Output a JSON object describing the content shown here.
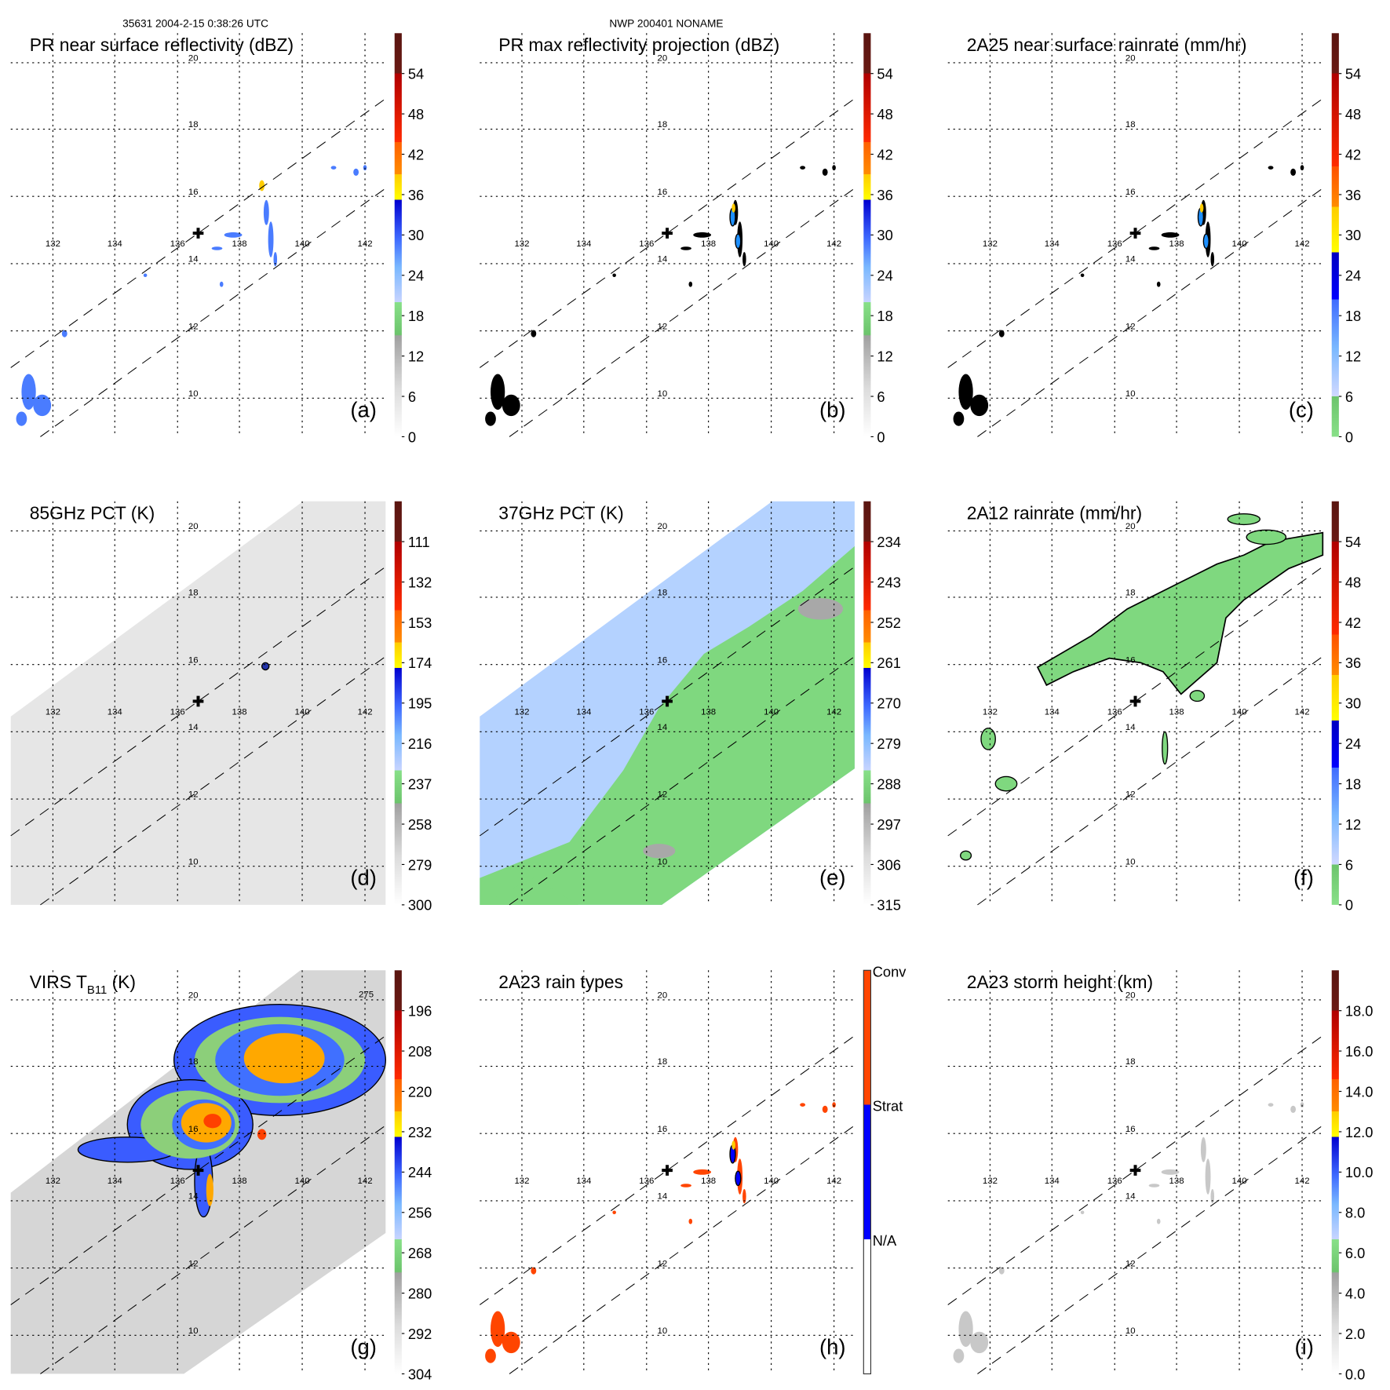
{
  "header": {
    "left": "35631 2004-2-15 0:38:26 UTC",
    "center": "NWP 200401 NONAME"
  },
  "axes": {
    "lat_labels": [
      "20",
      "18",
      "16",
      "14",
      "12",
      "10"
    ],
    "lon_labels": [
      "132",
      "134",
      "136",
      "138",
      "140",
      "142"
    ]
  },
  "chart_data": [
    {
      "type": "heatmap",
      "id": "a",
      "title": "PR near surface reflectivity (dBZ)",
      "panel_label": "(a)",
      "scale": "A",
      "ticks": [
        "0",
        "6",
        "12",
        "18",
        "24",
        "30",
        "36",
        "42",
        "48",
        "54"
      ],
      "range": [
        0,
        60
      ]
    },
    {
      "type": "heatmap",
      "id": "b",
      "title": "PR max reflectivity projection (dBZ)",
      "panel_label": "(b)",
      "scale": "A",
      "ticks": [
        "0",
        "6",
        "12",
        "18",
        "24",
        "30",
        "36",
        "42",
        "48",
        "54"
      ],
      "range": [
        0,
        60
      ]
    },
    {
      "type": "heatmap",
      "id": "c",
      "title": "2A25 near surface rainrate (mm/hr)",
      "panel_label": "(c)",
      "scale": "C",
      "ticks": [
        "0",
        "6",
        "12",
        "18",
        "24",
        "30",
        "36",
        "42",
        "48",
        "54"
      ],
      "range": [
        0,
        60
      ]
    },
    {
      "type": "heatmap",
      "id": "d",
      "title": "85GHz PCT (K)",
      "panel_label": "(d)",
      "scale": "A",
      "ticks": [
        "300",
        "279",
        "258",
        "237",
        "216",
        "195",
        "174",
        "153",
        "132",
        "111"
      ],
      "range": [
        300,
        90
      ]
    },
    {
      "type": "heatmap",
      "id": "e",
      "title": "37GHz PCT (K)",
      "panel_label": "(e)",
      "scale": "A",
      "ticks": [
        "315",
        "306",
        "297",
        "288",
        "279",
        "270",
        "261",
        "252",
        "243",
        "234"
      ],
      "range": [
        315,
        225
      ]
    },
    {
      "type": "heatmap",
      "id": "f",
      "title": "2A12 rainrate (mm/hr)",
      "panel_label": "(f)",
      "scale": "C",
      "ticks": [
        "0",
        "6",
        "12",
        "18",
        "24",
        "30",
        "36",
        "42",
        "48",
        "54"
      ],
      "range": [
        0,
        60
      ]
    },
    {
      "type": "heatmap",
      "id": "g",
      "title": "VIRS T",
      "title_sub": "B11",
      "title_end": " (K)",
      "panel_label": "(g)",
      "scale": "A",
      "ticks": [
        "304",
        "292",
        "280",
        "268",
        "256",
        "244",
        "232",
        "220",
        "208",
        "196"
      ],
      "range": [
        304,
        184
      ],
      "contour_label": "275"
    },
    {
      "type": "heatmap",
      "id": "h",
      "title": "2A23 rain types",
      "panel_label": "(h)",
      "scale": "H",
      "categories": [
        "N/A",
        "Strat",
        "Conv"
      ]
    },
    {
      "type": "heatmap",
      "id": "i",
      "title": "2A23 storm height (km)",
      "panel_label": "(i)",
      "scale": "A",
      "ticks": [
        "0.0",
        "2.0",
        "4.0",
        "6.0",
        "8.0",
        "10.0",
        "12.0",
        "14.0",
        "16.0",
        "18.0"
      ],
      "range": [
        0,
        20
      ]
    }
  ],
  "scales": {
    "A": [
      [
        0.0,
        "#ffffff"
      ],
      [
        0.12,
        "#dcdcdc"
      ],
      [
        0.25,
        "#a0a0a0"
      ],
      [
        0.253,
        "#6cc46c"
      ],
      [
        0.333,
        "#88e088"
      ],
      [
        0.333,
        "#c8d4ff"
      ],
      [
        0.42,
        "#7ab8ff"
      ],
      [
        0.49,
        "#3f6bff"
      ],
      [
        0.587,
        "#0000d0"
      ],
      [
        0.587,
        "#ffff00"
      ],
      [
        0.65,
        "#ffcc00"
      ],
      [
        0.65,
        "#ff8c00"
      ],
      [
        0.73,
        "#ff6000"
      ],
      [
        0.73,
        "#ff2a00"
      ],
      [
        0.9,
        "#b00000"
      ],
      [
        0.9,
        "#6a1a14"
      ],
      [
        1.0,
        "#5a1510"
      ]
    ],
    "C": [
      [
        0.0,
        "#88e088"
      ],
      [
        0.1,
        "#6cc46c"
      ],
      [
        0.1,
        "#d0d8ff"
      ],
      [
        0.22,
        "#7ab8ff"
      ],
      [
        0.34,
        "#3f6bff"
      ],
      [
        0.34,
        "#0000ff"
      ],
      [
        0.457,
        "#0000c0"
      ],
      [
        0.457,
        "#ffff00"
      ],
      [
        0.57,
        "#ffcc00"
      ],
      [
        0.57,
        "#ff8c00"
      ],
      [
        0.67,
        "#ff5000"
      ],
      [
        0.67,
        "#ff2a00"
      ],
      [
        0.9,
        "#b00000"
      ],
      [
        0.9,
        "#6a1a14"
      ],
      [
        1.0,
        "#5a1510"
      ]
    ],
    "H": [
      [
        0.0,
        "#ffffff"
      ],
      [
        0.333,
        "#ffffff"
      ],
      [
        0.333,
        "#0000ff"
      ],
      [
        0.667,
        "#0000ff"
      ],
      [
        0.667,
        "#ff4500"
      ],
      [
        1.0,
        "#ff4500"
      ]
    ]
  },
  "colors": {
    "swath_gray": "#e6e6e6",
    "swath_blue": "#b4d2ff",
    "swath_green": "#7fd87f",
    "echo_blue": "#4a7cff",
    "conv": "#ff4500",
    "strat": "#0000ff"
  }
}
